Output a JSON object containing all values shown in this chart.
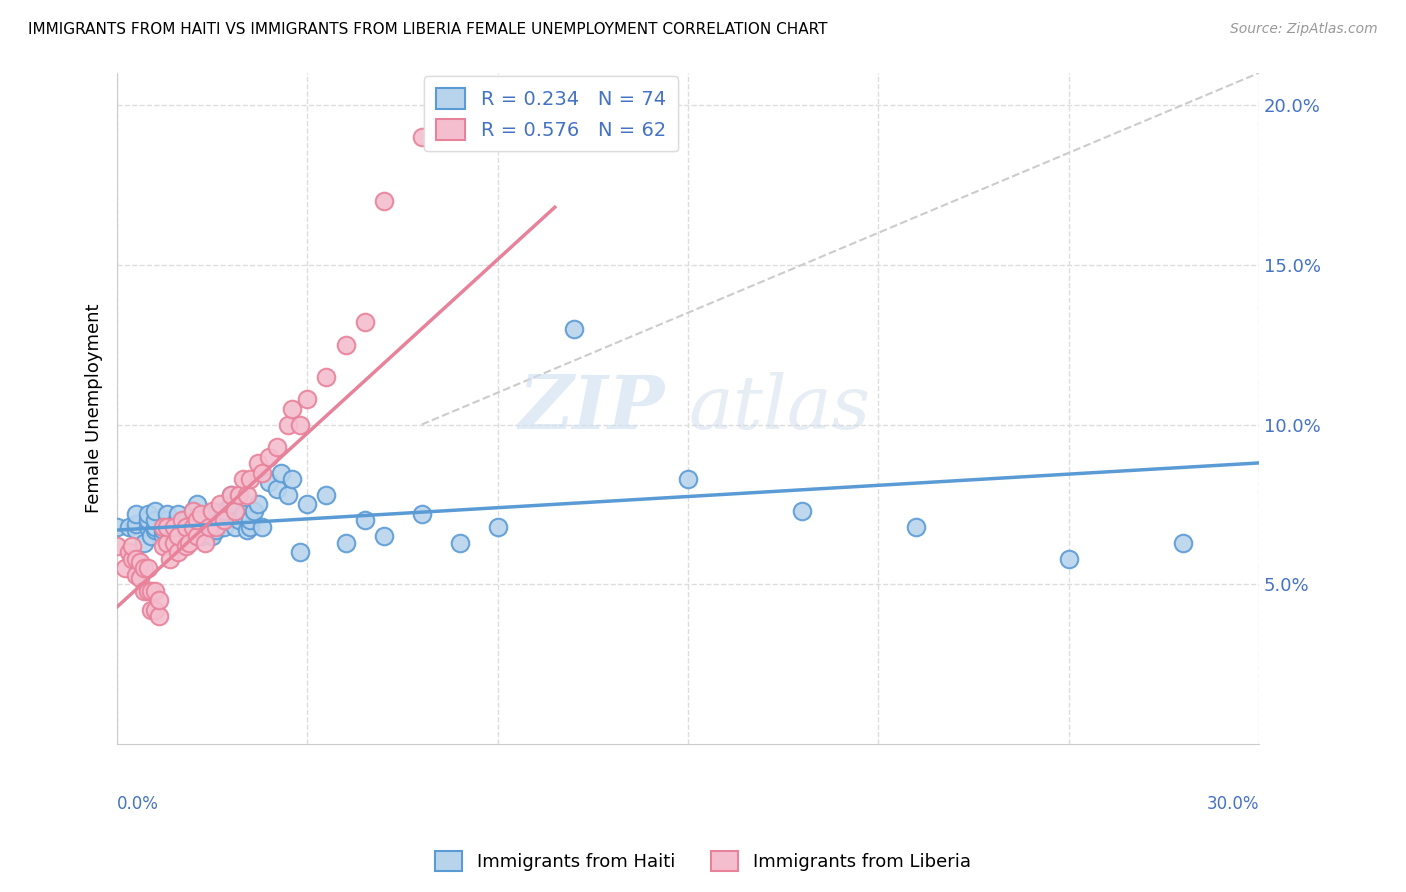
{
  "title": "IMMIGRANTS FROM HAITI VS IMMIGRANTS FROM LIBERIA FEMALE UNEMPLOYMENT CORRELATION CHART",
  "source": "Source: ZipAtlas.com",
  "ylabel": "Female Unemployment",
  "xlim": [
    0.0,
    0.3
  ],
  "ylim": [
    0.0,
    0.21
  ],
  "haiti_color": "#5b9bd5",
  "haiti_color_fill": "#b8d4ed",
  "liberia_color": "#e8829a",
  "liberia_color_fill": "#f4bece",
  "legend_label_haiti": "R = 0.234   N = 74",
  "legend_label_liberia": "R = 0.576   N = 62",
  "bottom_legend_haiti": "Immigrants from Haiti",
  "bottom_legend_liberia": "Immigrants from Liberia",
  "haiti_x": [
    0.0,
    0.003,
    0.005,
    0.005,
    0.005,
    0.007,
    0.008,
    0.008,
    0.008,
    0.009,
    0.01,
    0.01,
    0.01,
    0.01,
    0.012,
    0.012,
    0.013,
    0.013,
    0.013,
    0.014,
    0.015,
    0.015,
    0.016,
    0.016,
    0.017,
    0.018,
    0.018,
    0.019,
    0.02,
    0.02,
    0.02,
    0.021,
    0.022,
    0.022,
    0.023,
    0.024,
    0.025,
    0.025,
    0.026,
    0.026,
    0.027,
    0.028,
    0.028,
    0.03,
    0.03,
    0.031,
    0.032,
    0.033,
    0.034,
    0.035,
    0.035,
    0.036,
    0.037,
    0.038,
    0.04,
    0.042,
    0.043,
    0.045,
    0.046,
    0.048,
    0.05,
    0.055,
    0.06,
    0.065,
    0.07,
    0.08,
    0.09,
    0.1,
    0.12,
    0.15,
    0.18,
    0.21,
    0.25,
    0.28
  ],
  "haiti_y": [
    0.068,
    0.068,
    0.067,
    0.069,
    0.072,
    0.063,
    0.068,
    0.07,
    0.072,
    0.065,
    0.067,
    0.068,
    0.07,
    0.073,
    0.065,
    0.067,
    0.068,
    0.07,
    0.072,
    0.064,
    0.067,
    0.069,
    0.068,
    0.072,
    0.065,
    0.068,
    0.07,
    0.065,
    0.068,
    0.07,
    0.073,
    0.075,
    0.065,
    0.068,
    0.07,
    0.072,
    0.065,
    0.068,
    0.067,
    0.072,
    0.07,
    0.068,
    0.073,
    0.075,
    0.078,
    0.068,
    0.07,
    0.072,
    0.067,
    0.068,
    0.07,
    0.073,
    0.075,
    0.068,
    0.082,
    0.08,
    0.085,
    0.078,
    0.083,
    0.06,
    0.075,
    0.078,
    0.063,
    0.07,
    0.065,
    0.072,
    0.063,
    0.068,
    0.13,
    0.083,
    0.073,
    0.068,
    0.058,
    0.063
  ],
  "liberia_x": [
    0.0,
    0.002,
    0.003,
    0.004,
    0.004,
    0.005,
    0.005,
    0.006,
    0.006,
    0.007,
    0.007,
    0.008,
    0.008,
    0.009,
    0.009,
    0.01,
    0.01,
    0.011,
    0.011,
    0.012,
    0.012,
    0.013,
    0.013,
    0.014,
    0.015,
    0.015,
    0.016,
    0.016,
    0.017,
    0.018,
    0.018,
    0.019,
    0.02,
    0.02,
    0.021,
    0.021,
    0.022,
    0.023,
    0.024,
    0.025,
    0.026,
    0.027,
    0.028,
    0.03,
    0.031,
    0.032,
    0.033,
    0.034,
    0.035,
    0.037,
    0.038,
    0.04,
    0.042,
    0.045,
    0.046,
    0.048,
    0.05,
    0.055,
    0.06,
    0.065,
    0.07,
    0.08
  ],
  "liberia_y": [
    0.062,
    0.055,
    0.06,
    0.058,
    0.062,
    0.053,
    0.058,
    0.052,
    0.057,
    0.048,
    0.055,
    0.048,
    0.055,
    0.042,
    0.048,
    0.042,
    0.048,
    0.04,
    0.045,
    0.062,
    0.068,
    0.063,
    0.068,
    0.058,
    0.063,
    0.068,
    0.06,
    0.065,
    0.07,
    0.062,
    0.068,
    0.063,
    0.068,
    0.073,
    0.065,
    0.07,
    0.072,
    0.063,
    0.068,
    0.073,
    0.068,
    0.075,
    0.07,
    0.078,
    0.073,
    0.078,
    0.083,
    0.078,
    0.083,
    0.088,
    0.085,
    0.09,
    0.093,
    0.1,
    0.105,
    0.1,
    0.108,
    0.115,
    0.125,
    0.132,
    0.17,
    0.19
  ]
}
